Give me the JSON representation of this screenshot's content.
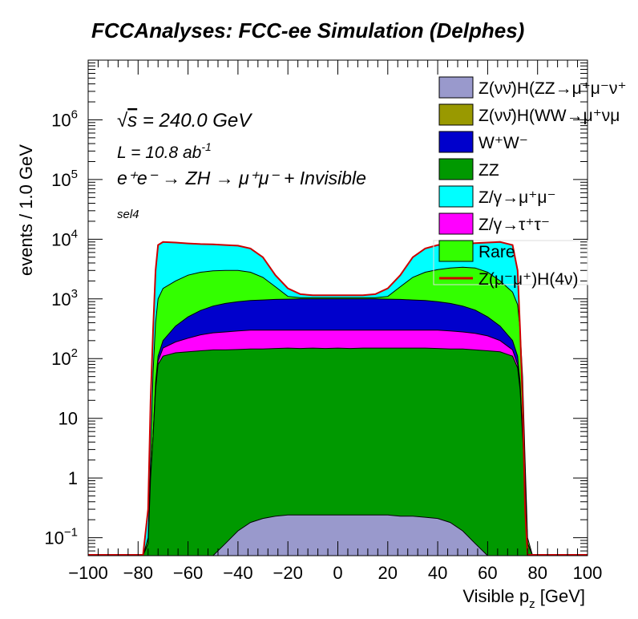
{
  "chart_data": {
    "type": "area",
    "title": "FCCAnalyses: FCC-ee Simulation (Delphes)",
    "xlabel": "Visible p",
    "xlabel_sub": "z",
    "xlabel_unit": " [GeV]",
    "ylabel": "events / 1.0 GeV",
    "annotations": {
      "energy_sqrt": "√",
      "energy_s": "s",
      "energy_rest": " = 240.0 GeV",
      "lumi_main": "L = 10.8 ab",
      "lumi_sup": "-1",
      "process": "e⁺e⁻ → ZH → μ⁺μ⁻ + Invisible",
      "selection": "sel4"
    },
    "xlim": [
      -100,
      100
    ],
    "y_scale": "log",
    "ylim": [
      0.05,
      10000000
    ],
    "x_ticks": [
      {
        "v": -100,
        "label": "−100"
      },
      {
        "v": -80,
        "label": "−80"
      },
      {
        "v": -60,
        "label": "−60"
      },
      {
        "v": -40,
        "label": "−40"
      },
      {
        "v": -20,
        "label": "−20"
      },
      {
        "v": 0,
        "label": "0"
      },
      {
        "v": 20,
        "label": "20"
      },
      {
        "v": 40,
        "label": "40"
      },
      {
        "v": 60,
        "label": "60"
      },
      {
        "v": 80,
        "label": "80"
      },
      {
        "v": 100,
        "label": "100"
      }
    ],
    "y_ticks": [
      {
        "v": 0.1,
        "base": "10",
        "sup": "−1"
      },
      {
        "v": 1,
        "base": "1",
        "sup": ""
      },
      {
        "v": 10,
        "base": "10",
        "sup": ""
      },
      {
        "v": 100,
        "base": "10",
        "sup": "2"
      },
      {
        "v": 1000,
        "base": "10",
        "sup": "3"
      },
      {
        "v": 10000,
        "base": "10",
        "sup": "4"
      },
      {
        "v": 100000,
        "base": "10",
        "sup": "5"
      },
      {
        "v": 1000000,
        "base": "10",
        "sup": "6"
      }
    ],
    "grid": false,
    "legend_position": "top-right",
    "legend": [
      {
        "label": "Z(νν̄)H(ZZ→μ⁺μ⁻ν⁺",
        "color": "#9999cc",
        "style": "fill"
      },
      {
        "label": "Z(νν̄)H(WW→μ⁺νμ",
        "color": "#999900",
        "style": "fill"
      },
      {
        "label": "W⁺W⁻",
        "color": "#0000cc",
        "style": "fill"
      },
      {
        "label": "ZZ",
        "color": "#009900",
        "style": "fill"
      },
      {
        "label": "Z/γ→μ⁺μ⁻",
        "color": "#00ffff",
        "style": "fill"
      },
      {
        "label": "Z/γ→τ⁺τ⁻",
        "color": "#ff00ff",
        "style": "fill"
      },
      {
        "label": "Rare",
        "color": "#33ff00",
        "style": "fill"
      },
      {
        "label": "Z(μ⁻μ⁺)H(4ν)",
        "color": "#cc0000",
        "style": "line"
      }
    ],
    "x": [
      -80,
      -78,
      -76,
      -75,
      -74,
      -73,
      -72,
      -70,
      -65,
      -60,
      -55,
      -50,
      -45,
      -40,
      -35,
      -30,
      -25,
      -20,
      -15,
      -10,
      -5,
      0,
      5,
      10,
      15,
      20,
      25,
      30,
      35,
      40,
      45,
      50,
      55,
      60,
      65,
      70,
      72,
      73,
      74,
      75,
      76,
      78,
      80
    ],
    "stack_order": [
      "H → ZZ signal-like",
      "ZZ",
      "Z/γ→τ⁺τ⁻",
      "W⁺W⁻",
      "Rare",
      "Z/γ→μ⁺μ⁻"
    ],
    "series": [
      {
        "name": "Z(νν̄)H(ZZ→μ⁺μ⁻ν⁺",
        "color": "#9999cc",
        "cumulative": true,
        "values": [
          0.05,
          0.05,
          0.05,
          0.05,
          0.05,
          0.05,
          0.05,
          0.05,
          0.05,
          0.05,
          0.05,
          0.05,
          0.08,
          0.13,
          0.18,
          0.21,
          0.23,
          0.24,
          0.24,
          0.24,
          0.24,
          0.24,
          0.24,
          0.24,
          0.24,
          0.24,
          0.23,
          0.23,
          0.22,
          0.21,
          0.18,
          0.13,
          0.08,
          0.05,
          0.05,
          0.05,
          0.05,
          0.05,
          0.05,
          0.05,
          0.05,
          0.05,
          0.05
        ]
      },
      {
        "name": "ZZ",
        "color": "#009900",
        "cumulative": true,
        "values": [
          0.05,
          0.05,
          0.08,
          1,
          5,
          30,
          80,
          110,
          125,
          130,
          135,
          140,
          140,
          142,
          145,
          145,
          148,
          150,
          148,
          150,
          148,
          150,
          148,
          150,
          150,
          150,
          150,
          150,
          150,
          148,
          145,
          145,
          140,
          135,
          130,
          110,
          70,
          30,
          5,
          1,
          0.08,
          0.05,
          0.05
        ]
      },
      {
        "name": "Z/γ→τ⁺τ⁻",
        "color": "#ff00ff",
        "cumulative": true,
        "values": [
          0.05,
          0.05,
          0.08,
          1,
          5,
          35,
          90,
          150,
          190,
          220,
          250,
          270,
          280,
          290,
          300,
          300,
          300,
          300,
          300,
          300,
          300,
          300,
          300,
          300,
          300,
          300,
          300,
          300,
          300,
          300,
          290,
          280,
          265,
          240,
          200,
          140,
          80,
          35,
          5,
          1,
          0.08,
          0.05,
          0.05
        ]
      },
      {
        "name": "W⁺W⁻",
        "color": "#0000cc",
        "cumulative": true,
        "values": [
          0.05,
          0.05,
          0.08,
          1,
          5,
          40,
          110,
          200,
          350,
          500,
          640,
          760,
          840,
          900,
          940,
          960,
          980,
          990,
          1000,
          1000,
          1000,
          1000,
          1000,
          1000,
          1000,
          990,
          980,
          960,
          940,
          900,
          840,
          760,
          650,
          500,
          350,
          200,
          110,
          40,
          5,
          1,
          0.08,
          0.05,
          0.05
        ]
      },
      {
        "name": "Rare",
        "color": "#33ff00",
        "cumulative": true,
        "values": [
          0.05,
          0.05,
          0.1,
          2,
          60,
          400,
          1000,
          1500,
          2000,
          2500,
          2800,
          2950,
          3000,
          3000,
          2800,
          2300,
          1600,
          1100,
          1050,
          1050,
          1050,
          1050,
          1050,
          1050,
          1050,
          1100,
          1600,
          2300,
          2800,
          3100,
          3300,
          3400,
          3300,
          2800,
          2000,
          1300,
          800,
          300,
          50,
          2,
          0.1,
          0.05,
          0.05
        ]
      },
      {
        "name": "Z/γ→μ⁺μ⁻",
        "color": "#00ffff",
        "cumulative": true,
        "values": [
          0.05,
          0.05,
          0.3,
          20,
          300,
          3000,
          8000,
          9000,
          8800,
          8500,
          8300,
          8200,
          8000,
          7800,
          7000,
          5000,
          2500,
          1500,
          1200,
          1150,
          1150,
          1150,
          1150,
          1150,
          1200,
          1500,
          2500,
          5000,
          7000,
          8000,
          8200,
          8400,
          8600,
          8800,
          9000,
          8000,
          3000,
          300,
          20,
          0.3,
          0.05,
          0.05,
          0.05
        ]
      }
    ],
    "signal_line": {
      "name": "Z(μ⁻μ⁺)H(4ν)",
      "color": "#cc0000"
    }
  }
}
